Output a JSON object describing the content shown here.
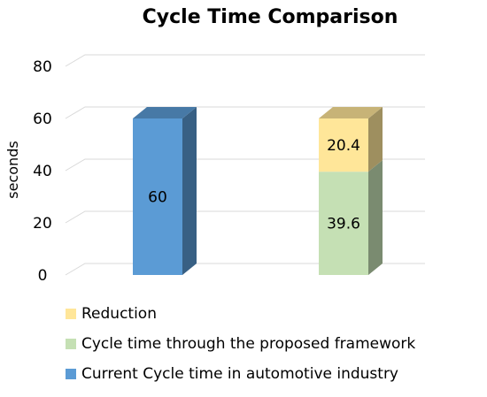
{
  "chart_data": {
    "type": "bar",
    "stacked": true,
    "style": "3d",
    "title": "Cycle Time Comparison",
    "xlabel": "",
    "ylabel": "seconds",
    "ylim": [
      0,
      80
    ],
    "yticks": [
      0,
      20,
      40,
      60,
      80
    ],
    "yticks_labels": [
      "0",
      "20",
      "40",
      "60",
      "80"
    ],
    "grid": true,
    "legend_position": "bottom-left",
    "categories": [
      "",
      ""
    ],
    "series": [
      {
        "name": "Current Cycle time in automotive industry",
        "color": "#5B9BD5",
        "values": [
          60,
          0
        ],
        "labels": [
          "60",
          ""
        ]
      },
      {
        "name": "Cycle time through the proposed framework",
        "color": "#C5E0B4",
        "values": [
          0,
          39.6
        ],
        "labels": [
          "",
          "39.6"
        ]
      },
      {
        "name": "Reduction",
        "color": "#FFE699",
        "values": [
          0,
          20.4
        ],
        "labels": [
          "",
          "20.4"
        ]
      }
    ],
    "legend_order": [
      2,
      1,
      0
    ]
  }
}
